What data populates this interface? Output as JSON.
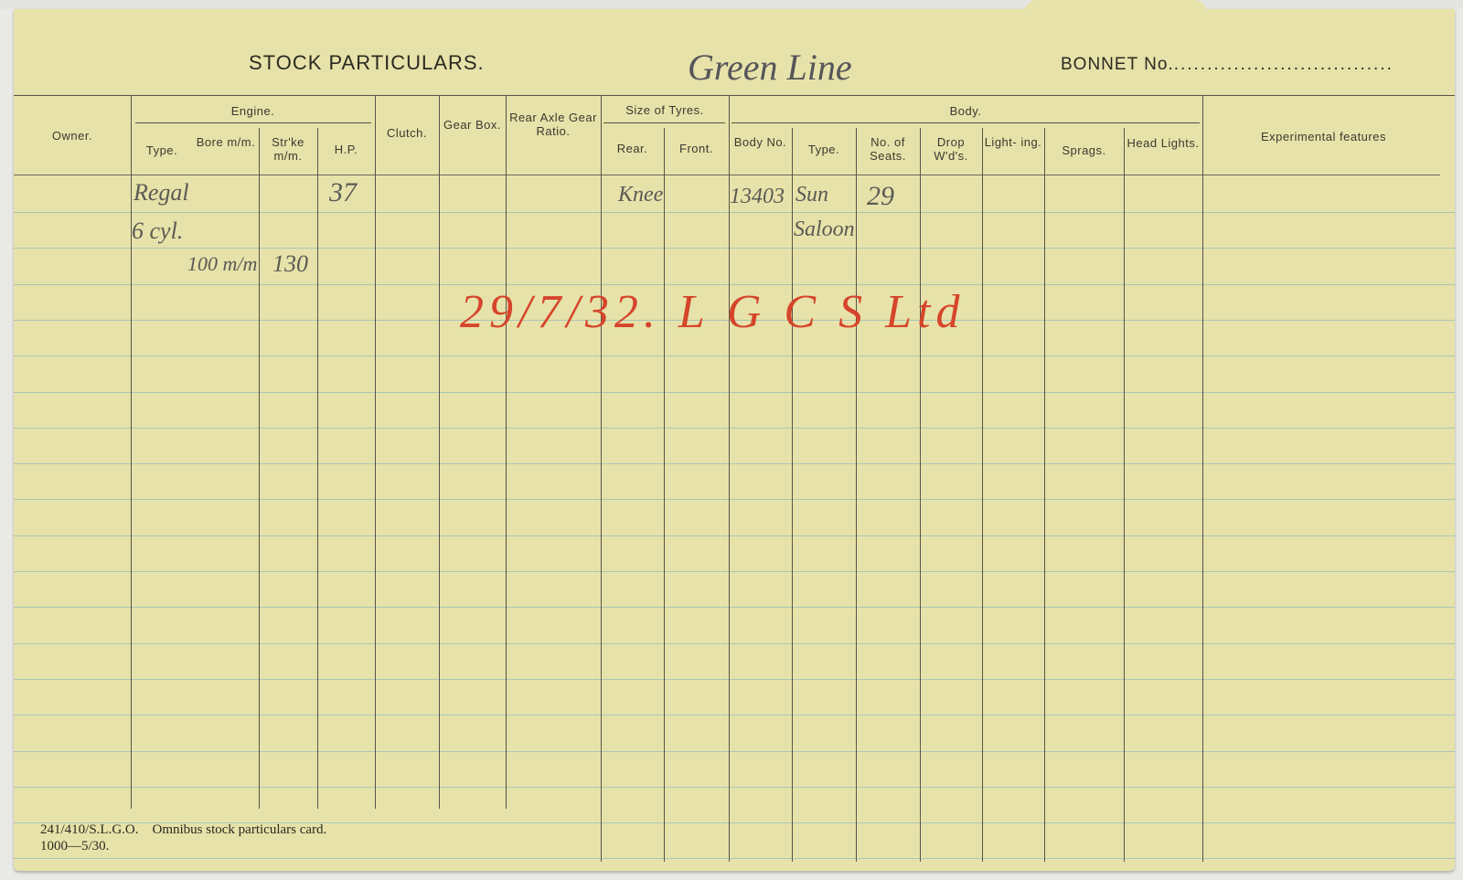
{
  "card": {
    "title": "STOCK PARTICULARS.",
    "route_handwritten": "Green Line",
    "bonnet_label": "BONNET No.",
    "bonnet_value": "",
    "columns": {
      "owner": "Owner.",
      "engine": "Engine.",
      "engine_type": "Type.",
      "bore": "Bore m/m.",
      "stroke": "Str'ke m/m.",
      "hp": "H.P.",
      "clutch": "Clutch.",
      "gear_box": "Gear Box.",
      "rear_axle": "Rear Axle Gear Ratio.",
      "tyres": "Size of Tyres.",
      "tyres_rear": "Rear.",
      "tyres_front": "Front.",
      "body": "Body.",
      "body_no": "Body No.",
      "body_type": "Type.",
      "seats": "No. of Seats.",
      "drop_windows": "Drop W'd's.",
      "lighting": "Light- ing.",
      "sprags": "Sprags.",
      "head_lights": "Head Lights.",
      "experimental": "Experimental features"
    },
    "entries": {
      "engine_type_1": "Regal",
      "engine_type_2": "6 cyl.",
      "bore": "100 m/m",
      "stroke": "130",
      "hp": "37",
      "tyres_rear": "Knee",
      "body_no": "13403",
      "body_type_1": "Sun",
      "body_type_2": "Saloon",
      "seats": "29"
    },
    "red_annotation": "29/7/32. L G C S Ltd",
    "footer_line1": "241/410/S.L.G.O.    Omnibus stock particulars card.",
    "footer_line2": "1000—5/30."
  },
  "colors": {
    "card": "#e7e2a9",
    "ink_red": "#d5452b",
    "pencil": "#5a5a55",
    "rule": "#a9c6b8"
  }
}
